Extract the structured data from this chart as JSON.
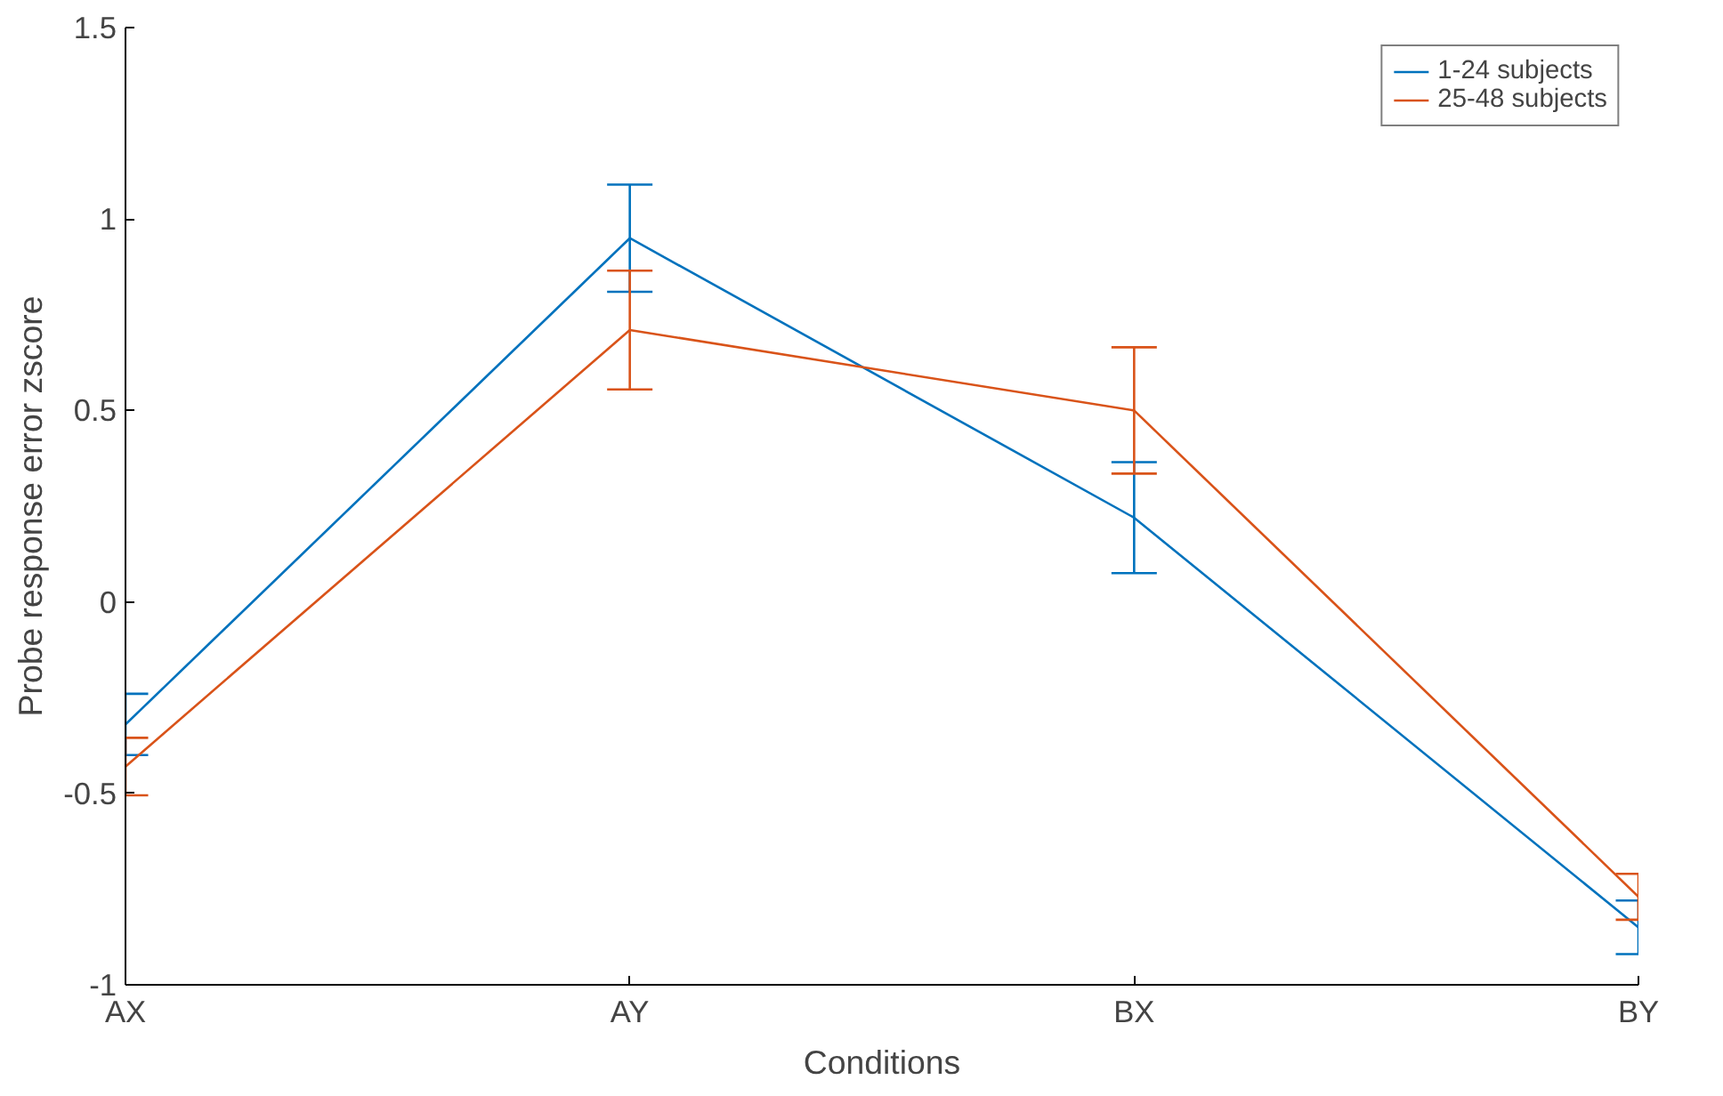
{
  "chart_data": {
    "type": "line",
    "xlabel": "Conditions",
    "ylabel": "Probe response error zscore",
    "categories": [
      "AX",
      "AY",
      "BX",
      "BY"
    ],
    "ylim": [
      -1,
      1.5
    ],
    "yticks": [
      -1,
      -0.5,
      0,
      0.5,
      1,
      1.5
    ],
    "grid": false,
    "legend": "top right",
    "marker": "none",
    "line_style": "solid",
    "series": [
      {
        "name": "1-24 subjects",
        "color": "#0072bd",
        "values": [
          -0.32,
          0.95,
          0.22,
          -0.85
        ],
        "errors": [
          0.08,
          0.14,
          0.145,
          0.07
        ]
      },
      {
        "name": "25-48 subjects",
        "color": "#d95319",
        "values": [
          -0.43,
          0.71,
          0.5,
          -0.77
        ],
        "errors": [
          0.075,
          0.155,
          0.165,
          0.06
        ]
      }
    ]
  }
}
